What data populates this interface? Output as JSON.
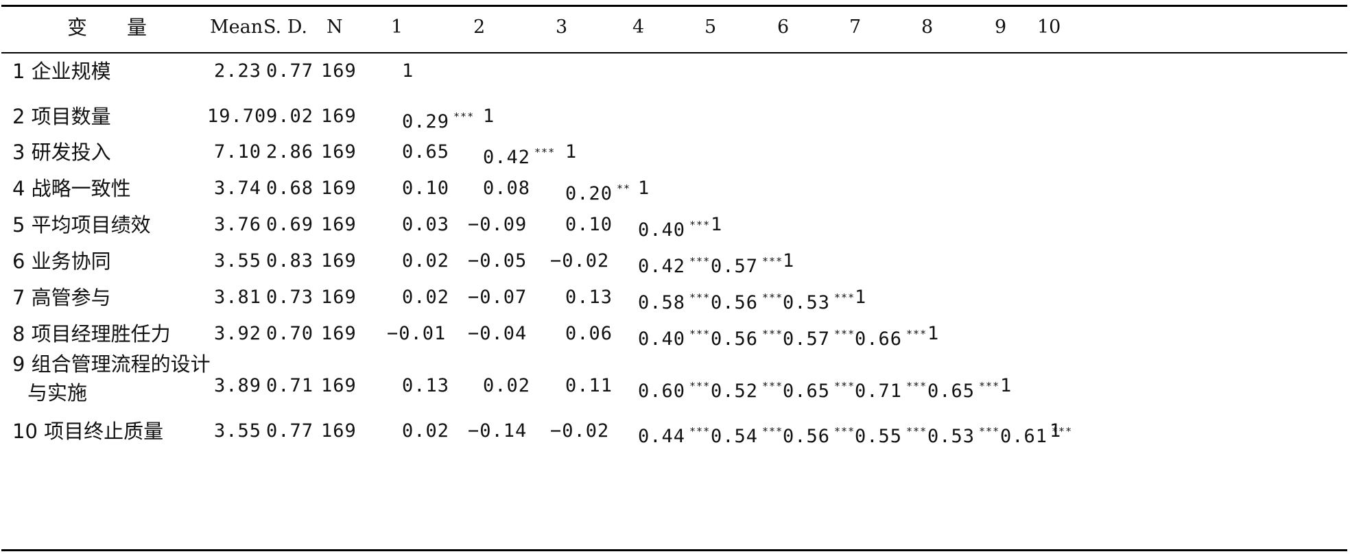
{
  "headers": {
    "variable": "变　　量",
    "mean": "Mean",
    "sd": "S. D.",
    "n": "N",
    "cols": [
      "1",
      "2",
      "3",
      "4",
      "5",
      "6",
      "7",
      "8",
      "9",
      "10"
    ]
  },
  "rows": [
    {
      "num": "1",
      "label": "企业规模",
      "mean": "2.23",
      "sd": "0.77",
      "n": "169",
      "cells": [
        [
          "1",
          ""
        ]
      ]
    },
    {
      "num": "2",
      "label": "项目数量",
      "mean": "19.70",
      "sd": "9.02",
      "n": "169",
      "cells": [
        [
          "0.29",
          "***"
        ],
        [
          "1",
          ""
        ]
      ]
    },
    {
      "num": "3",
      "label": "研发投入",
      "mean": "7.10",
      "sd": "2.86",
      "n": "169",
      "cells": [
        [
          "0.65",
          ""
        ],
        [
          "0.42",
          "***"
        ],
        [
          "1",
          ""
        ]
      ]
    },
    {
      "num": "4",
      "label": "战略一致性",
      "mean": "3.74",
      "sd": "0.68",
      "n": "169",
      "cells": [
        [
          "0.10",
          ""
        ],
        [
          "0.08",
          ""
        ],
        [
          "0.20",
          "**"
        ],
        [
          "1",
          ""
        ]
      ]
    },
    {
      "num": "5",
      "label": "平均项目绩效",
      "mean": "3.76",
      "sd": "0.69",
      "n": "169",
      "cells": [
        [
          "0.03",
          ""
        ],
        [
          "−0.09",
          ""
        ],
        [
          "0.10",
          ""
        ],
        [
          "0.40",
          "***"
        ],
        [
          "1",
          ""
        ]
      ]
    },
    {
      "num": "6",
      "label": "业务协同",
      "mean": "3.55",
      "sd": "0.83",
      "n": "169",
      "cells": [
        [
          "0.02",
          ""
        ],
        [
          "−0.05",
          ""
        ],
        [
          "−0.02",
          ""
        ],
        [
          "0.42",
          "***"
        ],
        [
          "0.57",
          "***"
        ],
        [
          "1",
          ""
        ]
      ]
    },
    {
      "num": "7",
      "label": "高管参与",
      "mean": "3.81",
      "sd": "0.73",
      "n": "169",
      "cells": [
        [
          "0.02",
          ""
        ],
        [
          "−0.07",
          ""
        ],
        [
          "0.13",
          ""
        ],
        [
          "0.58",
          "***"
        ],
        [
          "0.56",
          "***"
        ],
        [
          "0.53",
          "***"
        ],
        [
          "1",
          ""
        ]
      ]
    },
    {
      "num": "8",
      "label": "项目经理胜任力",
      "mean": "3.92",
      "sd": "0.70",
      "n": "169",
      "cells": [
        [
          "−0.01",
          ""
        ],
        [
          "−0.04",
          ""
        ],
        [
          "0.06",
          ""
        ],
        [
          "0.40",
          "***"
        ],
        [
          "0.56",
          "***"
        ],
        [
          "0.57",
          "***"
        ],
        [
          "0.66",
          "***"
        ],
        [
          "1",
          ""
        ]
      ]
    },
    {
      "num": "9",
      "label": "组合管理流程的设计",
      "label2": "与实施",
      "mean": "3.89",
      "sd": "0.71",
      "n": "169",
      "cells": [
        [
          "0.13",
          ""
        ],
        [
          "0.02",
          ""
        ],
        [
          "0.11",
          ""
        ],
        [
          "0.60",
          "***"
        ],
        [
          "0.52",
          "***"
        ],
        [
          "0.65",
          "***"
        ],
        [
          "0.71",
          "***"
        ],
        [
          "0.65",
          "***"
        ],
        [
          "1",
          ""
        ]
      ]
    },
    {
      "num": "10",
      "label": "项目终止质量",
      "mean": "3.55",
      "sd": "0.77",
      "n": "169",
      "cells": [
        [
          "0.02",
          ""
        ],
        [
          "−0.14",
          ""
        ],
        [
          "−0.02",
          ""
        ],
        [
          "0.44",
          "***"
        ],
        [
          "0.54",
          "***"
        ],
        [
          "0.56",
          "***"
        ],
        [
          "0.55",
          "***"
        ],
        [
          "0.53",
          "***"
        ],
        [
          "0.61",
          "***"
        ],
        [
          "1",
          ""
        ]
      ]
    }
  ]
}
